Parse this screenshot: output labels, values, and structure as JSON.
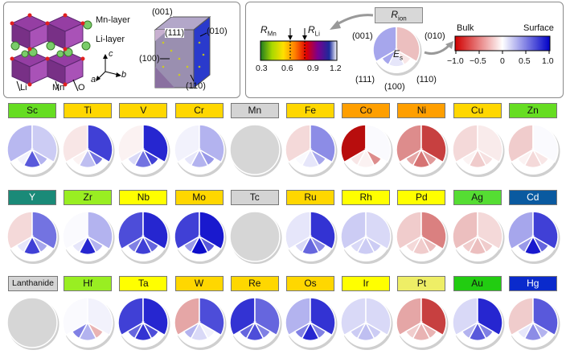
{
  "top_left": {
    "mn_layer": "Mn-layer",
    "li_layer": "Li-layer",
    "axis_c": "c",
    "axis_a": "a",
    "axis_b": "b",
    "atom_li": "Li",
    "atom_mn": "Mn",
    "atom_o": "O",
    "facets": {
      "f001": "(001)",
      "f111": "(111)",
      "f010": "(010)",
      "f100": "(100)",
      "f110": "(110)"
    }
  },
  "top_right": {
    "r_ion_base": "R",
    "r_ion_sub": "ion",
    "r_mn_base": "R",
    "r_mn_sub": "Mn",
    "r_li_base": "R",
    "r_li_sub": "Li",
    "scale1_ticks": [
      "0.3",
      "0.6",
      "0.9",
      "1.2"
    ],
    "es_base": "E",
    "es_sub": "s",
    "pie_labels": {
      "f001": "(001)",
      "f010": "(010)",
      "f111": "(111)",
      "f100": "(100)",
      "f110": "(110)"
    },
    "bulk": "Bulk",
    "surface": "Surface",
    "scale2_ticks": [
      "−1.0",
      "−0.5",
      "0",
      "0.5",
      "1.0"
    ]
  },
  "legend_colors": {
    "ionic_radius_gradient": [
      "#1f7a1f",
      "#e8e000",
      "#ff8000",
      "#e00000",
      "#7a0090",
      "#1a2a9a",
      "#ffffff"
    ],
    "segregation_gradient": [
      "#d00000",
      "#ffffff",
      "#0000c8"
    ]
  },
  "elements": [
    {
      "symbol": "Sc",
      "color": "#66dd22",
      "values": [
        0.28,
        0.2,
        0.05,
        0.65,
        0.3
      ]
    },
    {
      "symbol": "Ti",
      "color": "#ffd700",
      "values": [
        -0.1,
        0.75,
        -0.05,
        0.25,
        0.55
      ]
    },
    {
      "symbol": "V",
      "color": "#ffd700",
      "values": [
        -0.05,
        0.85,
        0.15,
        0.55,
        0.75
      ]
    },
    {
      "symbol": "Cr",
      "color": "#ffd700",
      "values": [
        0.05,
        0.3,
        0.1,
        0.3,
        0.4
      ]
    },
    {
      "symbol": "Mn",
      "color": "#d4d4d4",
      "values": null
    },
    {
      "symbol": "Fe",
      "color": "#ffd700",
      "values": [
        -0.15,
        0.45,
        0.02,
        0.1,
        0.35
      ]
    },
    {
      "symbol": "Co",
      "color": "#ff9f00",
      "values": [
        -0.95,
        0.02,
        -0.1,
        -0.05,
        -0.45
      ]
    },
    {
      "symbol": "Ni",
      "color": "#ff9f00",
      "values": [
        -0.45,
        -0.75,
        -0.35,
        -0.55,
        -0.4
      ]
    },
    {
      "symbol": "Cu",
      "color": "#ffd700",
      "values": [
        -0.15,
        -0.08,
        -0.05,
        -0.2,
        -0.12
      ]
    },
    {
      "symbol": "Zn",
      "color": "#66dd22",
      "values": [
        -0.2,
        0.02,
        -0.05,
        -0.15,
        -0.1
      ]
    },
    {
      "symbol": "Y",
      "color": "#1a8a78",
      "values": [
        -0.15,
        0.55,
        0.1,
        0.75,
        0.35
      ]
    },
    {
      "symbol": "Zr",
      "color": "#99ee22",
      "values": [
        0.02,
        0.3,
        0.1,
        0.85,
        0.3
      ]
    },
    {
      "symbol": "Nb",
      "color": "#ffff00",
      "values": [
        0.7,
        0.85,
        0.5,
        0.75,
        0.6
      ]
    },
    {
      "symbol": "Mo",
      "color": "#ffd700",
      "values": [
        0.75,
        0.9,
        0.4,
        0.95,
        0.65
      ]
    },
    {
      "symbol": "Tc",
      "color": "#d4d4d4",
      "values": null
    },
    {
      "symbol": "Ru",
      "color": "#ffd700",
      "values": [
        0.1,
        0.8,
        0.15,
        0.6,
        0.45
      ]
    },
    {
      "symbol": "Rh",
      "color": "#ffff00",
      "values": [
        0.2,
        0.15,
        0.15,
        0.2,
        0.2
      ]
    },
    {
      "symbol": "Pd",
      "color": "#ffff00",
      "values": [
        -0.2,
        -0.5,
        -0.15,
        -0.2,
        -0.25
      ]
    },
    {
      "symbol": "Ag",
      "color": "#55dd33",
      "values": [
        -0.25,
        -0.15,
        -0.2,
        -0.25,
        -0.2
      ]
    },
    {
      "symbol": "Cd",
      "color": "#0a5aa0",
      "values": [
        0.35,
        0.75,
        0.4,
        0.9,
        0.6
      ]
    },
    {
      "symbol": "Lanthanide",
      "color": "#d4d4d4",
      "values": null
    },
    {
      "symbol": "Hf",
      "color": "#99ee22",
      "values": [
        0.02,
        0.05,
        0.5,
        0.3,
        -0.3
      ]
    },
    {
      "symbol": "Ta",
      "color": "#ffff00",
      "values": [
        0.75,
        0.85,
        0.6,
        0.8,
        0.7
      ]
    },
    {
      "symbol": "W",
      "color": "#ffd700",
      "values": [
        -0.35,
        0.7,
        0.3,
        0.15,
        0.05
      ]
    },
    {
      "symbol": "Re",
      "color": "#ffd700",
      "values": [
        0.8,
        0.6,
        0.6,
        0.7,
        0.5
      ]
    },
    {
      "symbol": "Os",
      "color": "#ffd700",
      "values": [
        0.3,
        0.8,
        0.5,
        0.85,
        0.5
      ]
    },
    {
      "symbol": "Ir",
      "color": "#ffff00",
      "values": [
        0.15,
        0.15,
        0.2,
        0.25,
        0.2
      ]
    },
    {
      "symbol": "Pt",
      "color": "#eeee66",
      "values": [
        -0.35,
        -0.75,
        -0.2,
        -0.3,
        -0.3
      ]
    },
    {
      "symbol": "Au",
      "color": "#22cc11",
      "values": [
        0.15,
        0.85,
        0.3,
        0.65,
        0.5
      ]
    },
    {
      "symbol": "Hg",
      "color": "#0a2acc",
      "values": [
        -0.2,
        0.65,
        0.1,
        0.45,
        0.3
      ]
    }
  ]
}
